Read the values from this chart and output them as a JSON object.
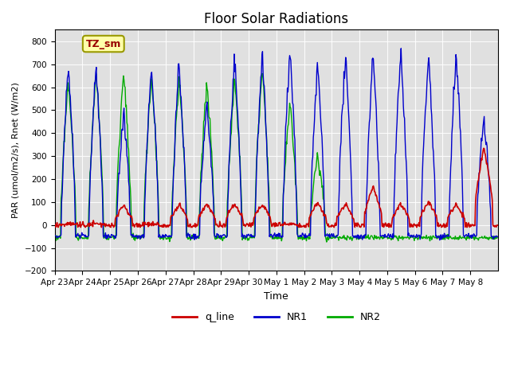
{
  "title": "Floor Solar Radiations",
  "xlabel": "Time",
  "ylabel": "PAR (umol/m2/s), Rnet (W/m2)",
  "ylim": [
    -200,
    850
  ],
  "yticks": [
    -200,
    -100,
    0,
    100,
    200,
    300,
    400,
    500,
    600,
    700,
    800
  ],
  "background_color": "#e0e0e0",
  "annotation_text": "TZ_sm",
  "annotation_box_color": "#ffffaa",
  "annotation_text_color": "#990000",
  "line_colors": {
    "q_line": "#cc0000",
    "NR1": "#0000cc",
    "NR2": "#00aa00"
  },
  "legend_labels": [
    "q_line",
    "NR1",
    "NR2"
  ],
  "num_days": 16,
  "day_labels": [
    "Apr 23",
    "Apr 24",
    "Apr 25",
    "Apr 26",
    "Apr 27",
    "Apr 28",
    "Apr 29",
    "Apr 30",
    "May 1",
    "May 2",
    "May 3",
    "May 4",
    "May 5",
    "May 6",
    "May 7",
    "May 8"
  ],
  "points_per_day": 48,
  "nr1_peaks": [
    700,
    690,
    480,
    680,
    700,
    530,
    730,
    730,
    770,
    700,
    730,
    740,
    750,
    735,
    740,
    470
  ],
  "q_peaks": [
    5,
    5,
    85,
    5,
    85,
    90,
    90,
    90,
    5,
    100,
    90,
    165,
    90,
    100,
    90,
    340
  ],
  "nr2_peaks": [
    620,
    670,
    660,
    650,
    630,
    620,
    640,
    670,
    530,
    300,
    0,
    0,
    0,
    0,
    0,
    0
  ],
  "nr2_cutoff_day": 10
}
